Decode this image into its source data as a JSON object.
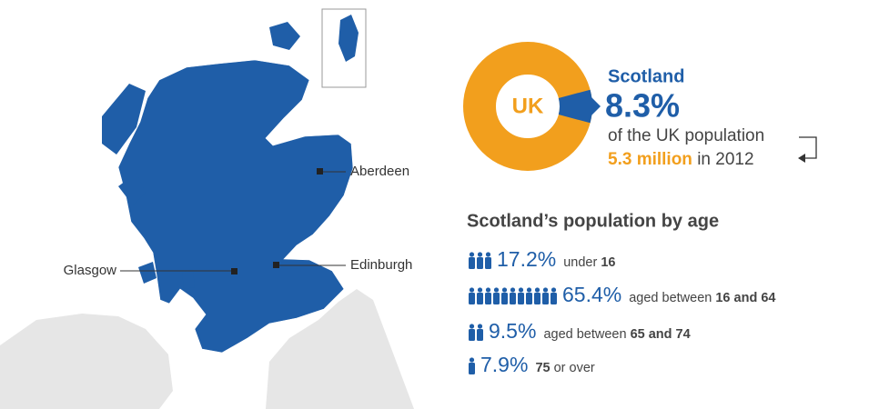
{
  "map": {
    "cities": {
      "aberdeen": "Aberdeen",
      "edinburgh": "Edinburgh",
      "glasgow": "Glasgow"
    }
  },
  "share": {
    "center_label": "UK",
    "name": "Scotland",
    "percent": 8.3,
    "value_label": "8.3%",
    "caption": "of the UK population",
    "population": "5.3 million",
    "year_text": "in 2012"
  },
  "age": {
    "title": "Scotland’s population by age",
    "groups": [
      {
        "value": 17.2,
        "value_label": "17.2%",
        "parts": [
          {
            "text": "under"
          },
          {
            "text": "16",
            "bold": true
          }
        ]
      },
      {
        "value": 65.4,
        "value_label": "65.4%",
        "parts": [
          {
            "text": "aged between"
          },
          {
            "text": "16 and 64",
            "bold": true
          }
        ]
      },
      {
        "value": 9.5,
        "value_label": "9.5%",
        "parts": [
          {
            "text": "aged between"
          },
          {
            "text": "65 and 74",
            "bold": true
          }
        ]
      },
      {
        "value": 7.9,
        "value_label": "7.9%",
        "parts": [
          {
            "bold": true,
            "text": "75"
          },
          {
            "text": "or over"
          }
        ]
      }
    ]
  }
}
